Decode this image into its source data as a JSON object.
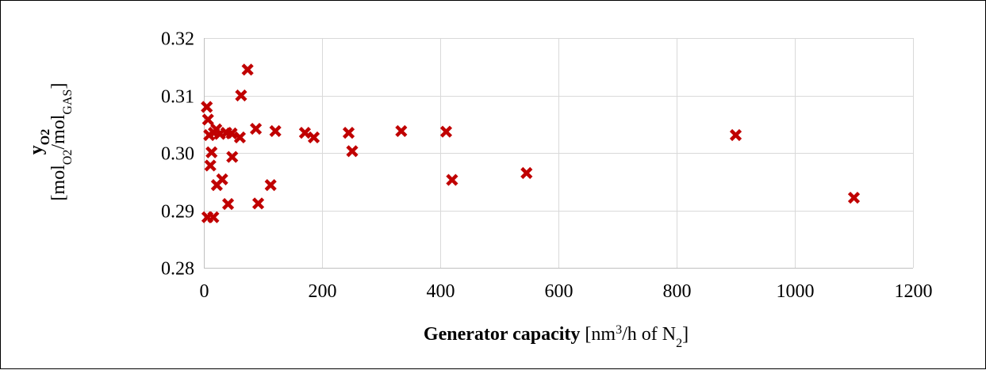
{
  "chart_data": {
    "type": "scatter",
    "title": "",
    "xlabel": {
      "bold": "Generator capacity",
      "unit_prefix": " [nm",
      "unit_sup": "3",
      "unit_mid": "/h of N",
      "unit_sub": "2",
      "unit_suffix": "]"
    },
    "ylabel": {
      "symbol": "y",
      "symbol_sub": "O2",
      "unit_open": "[mol",
      "unit_sub1": "O2",
      "unit_mid": "/mol",
      "unit_sub2": "GAS",
      "unit_close": "]"
    },
    "xlim": [
      0,
      1200
    ],
    "ylim": [
      0.28,
      0.32
    ],
    "xticks": [
      "0",
      "200",
      "400",
      "600",
      "800",
      "1000",
      "1200"
    ],
    "yticks": [
      "0.28",
      "0.29",
      "0.30",
      "0.31",
      "0.32"
    ],
    "grid": true,
    "marker": "x",
    "marker_color": "#C00000",
    "points": [
      {
        "x": 5,
        "y": 0.308
      },
      {
        "x": 7,
        "y": 0.3058
      },
      {
        "x": 6,
        "y": 0.2888
      },
      {
        "x": 9,
        "y": 0.3031
      },
      {
        "x": 11,
        "y": 0.2978
      },
      {
        "x": 13,
        "y": 0.3001
      },
      {
        "x": 16,
        "y": 0.2888
      },
      {
        "x": 17,
        "y": 0.3035
      },
      {
        "x": 21,
        "y": 0.3041
      },
      {
        "x": 22,
        "y": 0.2944
      },
      {
        "x": 27,
        "y": 0.3033
      },
      {
        "x": 31,
        "y": 0.2954
      },
      {
        "x": 38,
        "y": 0.3035
      },
      {
        "x": 41,
        "y": 0.2911
      },
      {
        "x": 47,
        "y": 0.3034
      },
      {
        "x": 48,
        "y": 0.2993
      },
      {
        "x": 61,
        "y": 0.3027
      },
      {
        "x": 63,
        "y": 0.31
      },
      {
        "x": 74,
        "y": 0.3145
      },
      {
        "x": 88,
        "y": 0.3042
      },
      {
        "x": 92,
        "y": 0.2912
      },
      {
        "x": 113,
        "y": 0.2944
      },
      {
        "x": 121,
        "y": 0.3038
      },
      {
        "x": 171,
        "y": 0.3035
      },
      {
        "x": 186,
        "y": 0.3027
      },
      {
        "x": 245,
        "y": 0.3035
      },
      {
        "x": 251,
        "y": 0.3003
      },
      {
        "x": 334,
        "y": 0.3038
      },
      {
        "x": 410,
        "y": 0.3037
      },
      {
        "x": 420,
        "y": 0.2953
      },
      {
        "x": 546,
        "y": 0.2965
      },
      {
        "x": 900,
        "y": 0.3031
      },
      {
        "x": 1100,
        "y": 0.2922
      }
    ]
  }
}
